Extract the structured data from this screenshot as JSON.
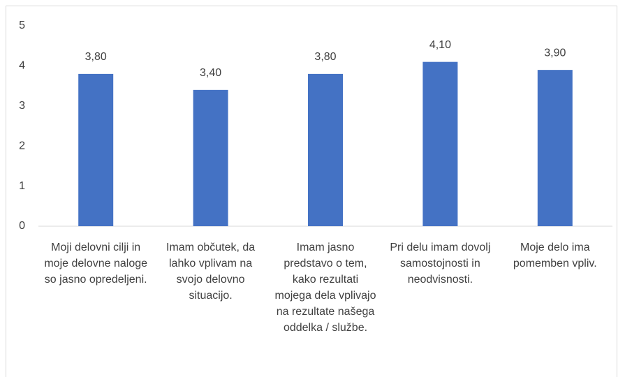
{
  "chart_data": {
    "type": "bar",
    "categories": [
      "Moji delovni cilji in moje delovne naloge so jasno opredeljeni.",
      "Imam občutek, da lahko vplivam na svojo delovno situacijo.",
      "Imam jasno predstavo o tem, kako rezultati mojega dela vplivajo na rezultate našega oddelka / službe.",
      "Pri delu imam dovolj samostojnosti in neodvisnosti.",
      "Moje delo ima pomemben vpliv."
    ],
    "values": [
      3.8,
      3.4,
      3.8,
      4.1,
      3.9
    ],
    "value_labels": [
      "3,80",
      "3,40",
      "3,80",
      "4,10",
      "3,90"
    ],
    "color": "#4472c4",
    "ylim": [
      0,
      5
    ],
    "yticks": [
      0,
      1,
      2,
      3,
      4,
      5
    ],
    "grid": false
  }
}
